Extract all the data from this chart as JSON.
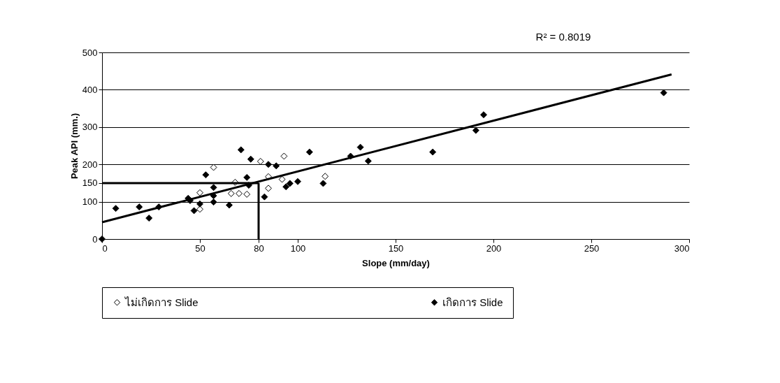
{
  "chart_data": {
    "type": "scatter",
    "xlabel": "Slope (mm/day)",
    "ylabel": "Peak API (mm.)",
    "xlim": [
      0,
      300
    ],
    "ylim": [
      0,
      500
    ],
    "xticks": [
      0,
      50,
      80,
      100,
      150,
      200,
      250,
      300
    ],
    "yticks": [
      0,
      100,
      150,
      200,
      300,
      400,
      500
    ],
    "grid": "y",
    "legend": "bottom",
    "annotations": [
      "R² = 0.8019"
    ],
    "ref_lines": [
      {
        "axis": "x",
        "value": 80,
        "color": "#000000"
      },
      {
        "axis": "y",
        "value": 150,
        "color": "#000000"
      }
    ],
    "series": [
      {
        "name": "ไม่เกิดการ Slide",
        "color": "#ffffff",
        "marker": "diamond",
        "x": [
          50,
          50,
          57,
          66,
          68,
          70,
          74,
          81,
          85,
          85,
          92,
          93,
          114
        ],
        "values": [
          124,
          80,
          192,
          122,
          152,
          122,
          120,
          208,
          167,
          136,
          160,
          222,
          168
        ]
      },
      {
        "name": "เกิดการ Slide",
        "color": "#000000",
        "marker": "diamond",
        "x": [
          0,
          7,
          19,
          24,
          29,
          44,
          45,
          47,
          50,
          53,
          57,
          57,
          57,
          65,
          71,
          76,
          74,
          75,
          83,
          85,
          89,
          94,
          96,
          100,
          106,
          113,
          127,
          132,
          136,
          169,
          191,
          195,
          287
        ],
        "values": [
          0,
          82,
          86,
          56,
          86,
          109,
          103,
          76,
          94,
          172,
          138,
          116,
          99,
          91,
          239,
          214,
          165,
          144,
          113,
          200,
          196,
          140,
          149,
          154,
          233,
          149,
          222,
          246,
          209,
          233,
          291,
          333,
          392
        ]
      },
      {
        "type": "line",
        "color": "#000000",
        "marker": "none",
        "x": [
          0,
          291
        ],
        "values": [
          45,
          441
        ]
      }
    ]
  }
}
